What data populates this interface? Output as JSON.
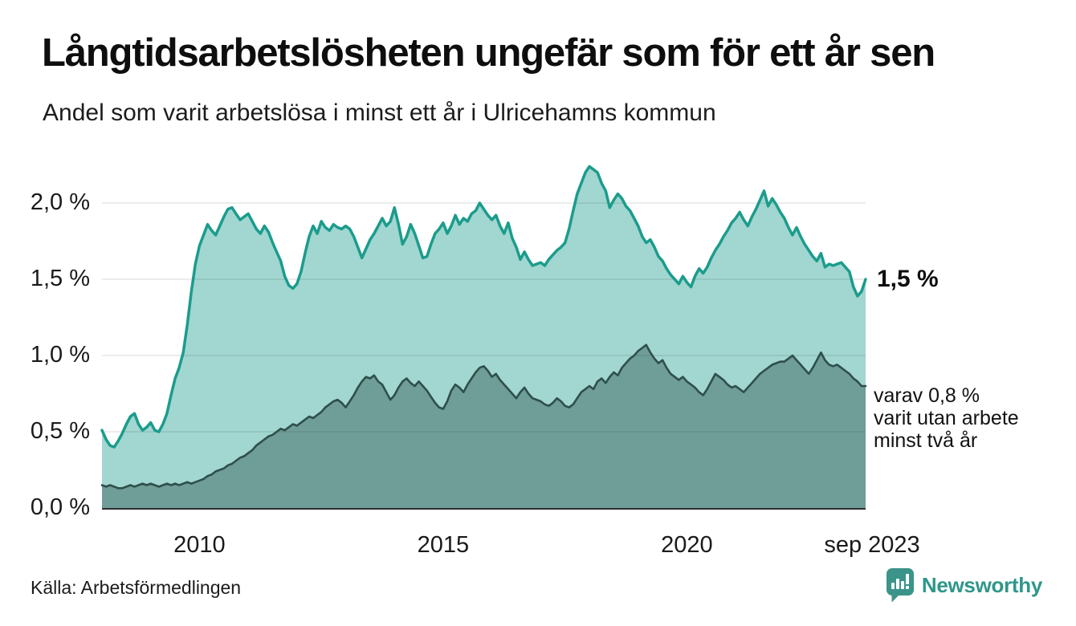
{
  "header": {
    "title": "Långtidsarbetslösheten ungefär som för ett år sen",
    "subtitle": "Andel som varit arbetslösa i minst ett år i Ulricehamns kommun"
  },
  "footer": {
    "source": "Källa: Arbetsförmedlingen",
    "brand": "Newsworthy"
  },
  "colors": {
    "accent_teal": "#1b9c8c",
    "fill_light": "#a2d6d0",
    "fill_dark": "#6f9d98",
    "stroke_dark": "#2e4f4b",
    "grid": "#1f2933",
    "baseline": "#2f2f2f",
    "brand_teal": "#2f968b"
  },
  "chart_data": {
    "type": "area",
    "title": "Långtidsarbetslösheten ungefär som för ett år sen",
    "subtitle": "Andel som varit arbetslösa i minst ett år i Ulricehamns kommun",
    "unit": "%",
    "x_start": "2008-01",
    "x_end": "2023-09",
    "x_frequency": "monthly",
    "grid": true,
    "legend": false,
    "ylim": [
      0,
      2.37
    ],
    "y_ticks": [
      {
        "label": "0,0 %",
        "value": 0.0
      },
      {
        "label": "0,5 %",
        "value": 0.5
      },
      {
        "label": "1,0 %",
        "value": 1.0
      },
      {
        "label": "1,5 %",
        "value": 1.5
      },
      {
        "label": "2,0 %",
        "value": 2.0
      }
    ],
    "x_ticks": [
      {
        "label": "2010",
        "year": 2010.0
      },
      {
        "label": "2015",
        "year": 2015.0
      },
      {
        "label": "2020",
        "year": 2020.0
      },
      {
        "label": "sep 2023",
        "year": 2023.667
      }
    ],
    "series": [
      {
        "name": "Andel arbetslösa minst ett år",
        "color": "#1b9c8c",
        "fill": "#a2d6d0",
        "stroke_width": 3.5,
        "values": [
          0.51,
          0.45,
          0.41,
          0.4,
          0.44,
          0.49,
          0.55,
          0.6,
          0.62,
          0.55,
          0.51,
          0.53,
          0.56,
          0.51,
          0.5,
          0.55,
          0.62,
          0.74,
          0.85,
          0.92,
          1.02,
          1.2,
          1.42,
          1.6,
          1.72,
          1.79,
          1.86,
          1.82,
          1.79,
          1.85,
          1.91,
          1.96,
          1.97,
          1.93,
          1.89,
          1.91,
          1.93,
          1.88,
          1.83,
          1.8,
          1.85,
          1.81,
          1.74,
          1.68,
          1.62,
          1.52,
          1.46,
          1.44,
          1.47,
          1.55,
          1.67,
          1.78,
          1.85,
          1.8,
          1.88,
          1.84,
          1.82,
          1.86,
          1.84,
          1.83,
          1.85,
          1.83,
          1.78,
          1.71,
          1.64,
          1.7,
          1.76,
          1.8,
          1.85,
          1.9,
          1.85,
          1.88,
          1.97,
          1.86,
          1.73,
          1.78,
          1.86,
          1.8,
          1.72,
          1.64,
          1.65,
          1.73,
          1.8,
          1.83,
          1.87,
          1.8,
          1.85,
          1.92,
          1.86,
          1.9,
          1.88,
          1.93,
          1.95,
          2.0,
          1.96,
          1.92,
          1.89,
          1.92,
          1.85,
          1.8,
          1.87,
          1.77,
          1.71,
          1.63,
          1.68,
          1.63,
          1.59,
          1.6,
          1.61,
          1.59,
          1.63,
          1.66,
          1.69,
          1.71,
          1.74,
          1.83,
          1.95,
          2.06,
          2.13,
          2.2,
          2.24,
          2.22,
          2.2,
          2.13,
          2.08,
          1.97,
          2.02,
          2.06,
          2.03,
          1.98,
          1.95,
          1.9,
          1.85,
          1.78,
          1.74,
          1.76,
          1.71,
          1.65,
          1.62,
          1.57,
          1.53,
          1.5,
          1.47,
          1.52,
          1.48,
          1.45,
          1.52,
          1.57,
          1.54,
          1.58,
          1.64,
          1.69,
          1.73,
          1.78,
          1.82,
          1.87,
          1.9,
          1.94,
          1.89,
          1.85,
          1.91,
          1.96,
          2.02,
          2.08,
          1.98,
          2.03,
          1.99,
          1.94,
          1.9,
          1.84,
          1.79,
          1.84,
          1.78,
          1.73,
          1.69,
          1.65,
          1.62,
          1.67,
          1.58,
          1.6,
          1.59,
          1.6,
          1.61,
          1.58,
          1.55,
          1.45,
          1.39,
          1.42,
          1.5
        ]
      },
      {
        "name": "Andel arbetslösa minst två år",
        "color": "#2e4f4b",
        "fill": "#6f9d98",
        "stroke_width": 2.6,
        "values": [
          0.15,
          0.14,
          0.15,
          0.14,
          0.13,
          0.13,
          0.14,
          0.15,
          0.14,
          0.15,
          0.16,
          0.15,
          0.16,
          0.15,
          0.14,
          0.15,
          0.16,
          0.15,
          0.16,
          0.15,
          0.16,
          0.17,
          0.16,
          0.17,
          0.18,
          0.19,
          0.21,
          0.22,
          0.24,
          0.25,
          0.26,
          0.28,
          0.29,
          0.31,
          0.33,
          0.34,
          0.36,
          0.38,
          0.41,
          0.43,
          0.45,
          0.47,
          0.48,
          0.5,
          0.52,
          0.51,
          0.53,
          0.55,
          0.54,
          0.56,
          0.58,
          0.6,
          0.59,
          0.61,
          0.63,
          0.66,
          0.68,
          0.7,
          0.71,
          0.69,
          0.66,
          0.7,
          0.74,
          0.79,
          0.83,
          0.86,
          0.85,
          0.87,
          0.83,
          0.81,
          0.76,
          0.71,
          0.74,
          0.79,
          0.83,
          0.85,
          0.82,
          0.8,
          0.83,
          0.8,
          0.77,
          0.73,
          0.69,
          0.66,
          0.65,
          0.7,
          0.77,
          0.81,
          0.79,
          0.76,
          0.81,
          0.85,
          0.89,
          0.92,
          0.93,
          0.9,
          0.86,
          0.88,
          0.84,
          0.81,
          0.78,
          0.75,
          0.72,
          0.76,
          0.79,
          0.75,
          0.72,
          0.71,
          0.7,
          0.68,
          0.67,
          0.69,
          0.72,
          0.7,
          0.67,
          0.66,
          0.68,
          0.72,
          0.76,
          0.78,
          0.8,
          0.78,
          0.83,
          0.85,
          0.82,
          0.86,
          0.89,
          0.87,
          0.92,
          0.95,
          0.98,
          1.0,
          1.03,
          1.05,
          1.07,
          1.02,
          0.98,
          0.95,
          0.97,
          0.92,
          0.88,
          0.86,
          0.84,
          0.86,
          0.83,
          0.81,
          0.79,
          0.76,
          0.74,
          0.78,
          0.83,
          0.88,
          0.86,
          0.84,
          0.81,
          0.79,
          0.8,
          0.78,
          0.76,
          0.79,
          0.82,
          0.85,
          0.88,
          0.9,
          0.92,
          0.94,
          0.95,
          0.96,
          0.96,
          0.98,
          1.0,
          0.97,
          0.94,
          0.91,
          0.88,
          0.92,
          0.97,
          1.02,
          0.97,
          0.94,
          0.93,
          0.94,
          0.92,
          0.9,
          0.88,
          0.85,
          0.83,
          0.8,
          0.8
        ]
      }
    ],
    "annotations": {
      "latest_value": "1,5 %",
      "secondary_lines": [
        "varav 0,8 %",
        "varit utan arbete",
        "minst två år"
      ]
    }
  }
}
